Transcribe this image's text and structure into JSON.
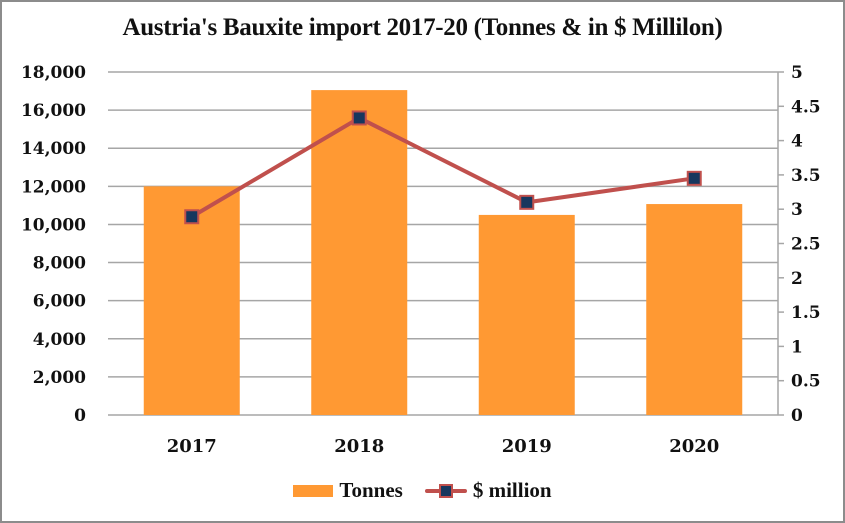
{
  "chart_data": {
    "type": "bar",
    "title": "Austria's Bauxite import 2017-20 (Tonnes & in $ Millilon)",
    "categories": [
      "2017",
      "2018",
      "2019",
      "2020"
    ],
    "series": [
      {
        "name": "Tonnes",
        "type": "bar",
        "axis": "left",
        "color": "#ff9933",
        "values": [
          12000,
          17050,
          10500,
          11070
        ]
      },
      {
        "name": "$ million",
        "type": "line",
        "axis": "right",
        "color": "#c0504d",
        "marker_color": "#17375e",
        "values": [
          2.89,
          4.33,
          3.1,
          3.45
        ]
      }
    ],
    "xlabel": "",
    "ylabel_left": "",
    "ylabel_right": "",
    "ylim_left": [
      0,
      18000
    ],
    "ylim_right": [
      0,
      5
    ],
    "left_ticks": [
      "0",
      "2,000",
      "4,000",
      "6,000",
      "8,000",
      "10,000",
      "12,000",
      "14,000",
      "16,000",
      "18,000"
    ],
    "right_ticks": [
      "0",
      "0.5",
      "1",
      "1.5",
      "2",
      "2.5",
      "3",
      "3.5",
      "4",
      "4.5",
      "5"
    ],
    "grid": true,
    "legend_position": "bottom"
  },
  "legend": {
    "items": [
      {
        "label": "Tonnes"
      },
      {
        "label": "$ million"
      }
    ]
  }
}
